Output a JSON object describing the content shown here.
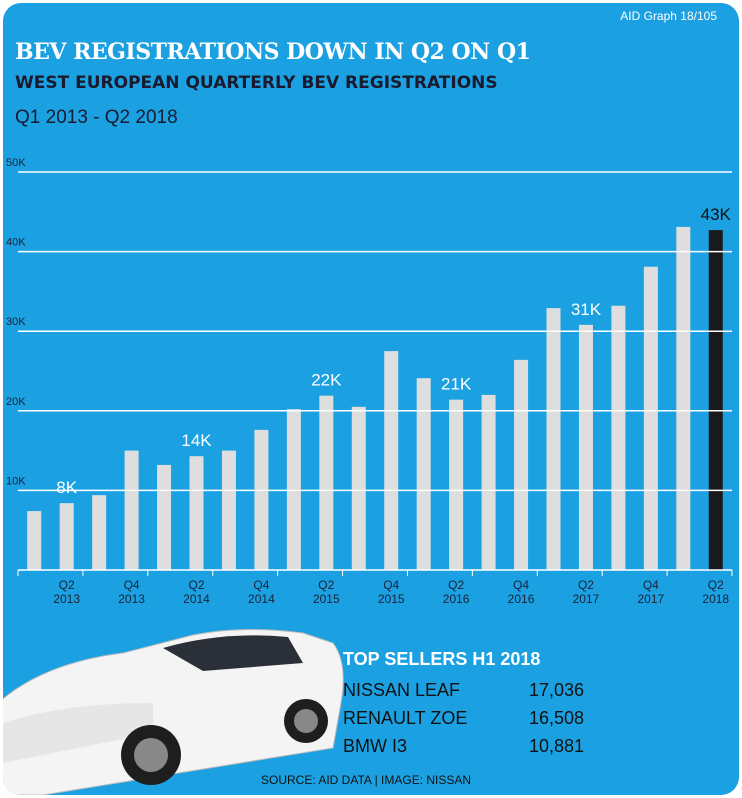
{
  "source_tag": "AID Graph 18/105",
  "chart_data": {
    "type": "bar",
    "title": "BEV REGISTRATIONS DOWN IN Q2 ON Q1",
    "subtitle": "WEST EUROPEAN QUARTERLY BEV REGISTRATIONS",
    "period": "Q1 2013 - Q2 2018",
    "categories": [
      null,
      "Q2 2013",
      null,
      "Q4 2013",
      null,
      "Q2 2014",
      null,
      "Q4 2014",
      null,
      "Q2 2015",
      null,
      "Q4 2015",
      null,
      "Q2 2016",
      null,
      "Q4 2016",
      null,
      "Q2 2017",
      null,
      "Q4 2017",
      null,
      "Q2 2018"
    ],
    "values": [
      7.4,
      8.4,
      9.4,
      15.0,
      13.2,
      14.3,
      15.0,
      17.6,
      20.2,
      21.9,
      20.5,
      27.5,
      24.1,
      21.4,
      22.0,
      26.4,
      32.9,
      30.8,
      33.2,
      38.1,
      43.1,
      42.7
    ],
    "value_labels": [
      null,
      "8K",
      null,
      null,
      null,
      "14K",
      null,
      null,
      null,
      "22K",
      null,
      null,
      null,
      "21K",
      null,
      null,
      null,
      "31K",
      null,
      null,
      null,
      "43K"
    ],
    "colors": [
      "#dedede",
      "#dedede",
      "#dedede",
      "#dedede",
      "#dedede",
      "#dedede",
      "#dedede",
      "#dedede",
      "#dedede",
      "#dedede",
      "#dedede",
      "#dedede",
      "#dedede",
      "#dedede",
      "#dedede",
      "#dedede",
      "#dedede",
      "#dedede",
      "#dedede",
      "#dedede",
      "#dedede",
      "#1a1a1a"
    ],
    "ylim": [
      0,
      50
    ],
    "yticks": [
      {
        "value": 10,
        "label": "10K"
      },
      {
        "value": 20,
        "label": "20K"
      },
      {
        "value": 30,
        "label": "30K"
      },
      {
        "value": 40,
        "label": "40K"
      },
      {
        "value": 50,
        "label": "50K"
      }
    ],
    "grid": true
  },
  "top_sellers": {
    "title": "TOP SELLERS H1 2018",
    "rows": [
      [
        "NISSAN LEAF",
        "17,036"
      ],
      [
        "RENAULT ZOE",
        "16,508"
      ],
      [
        "BMW I3",
        "10,881"
      ]
    ]
  },
  "footer": "SOURCE: AID DATA | IMAGE: NISSAN"
}
